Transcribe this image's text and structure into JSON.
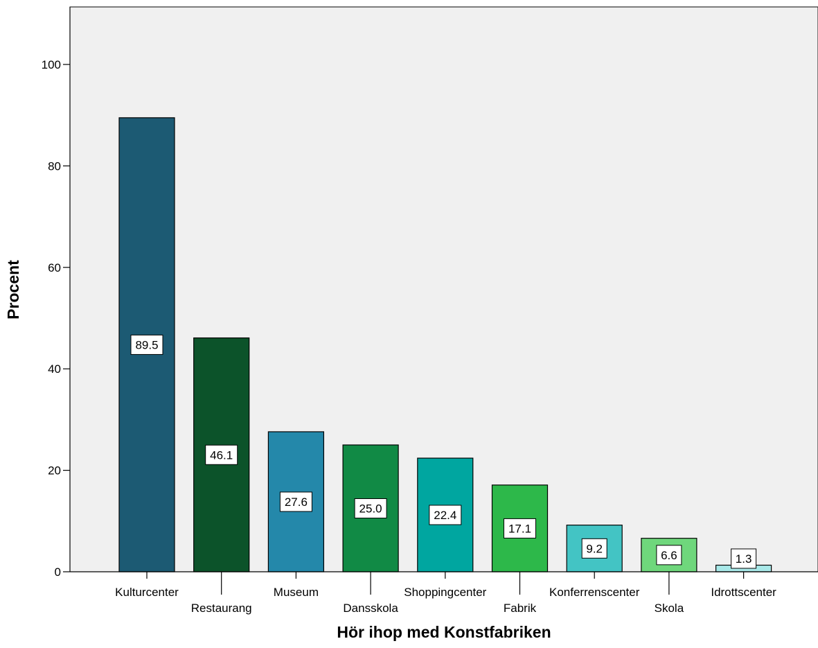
{
  "chart_data": {
    "type": "bar",
    "xlabel": "Hör ihop med Konstfabriken",
    "ylabel": "Procent",
    "ylim": [
      0,
      110
    ],
    "yticks": [
      0,
      20,
      40,
      60,
      80,
      100
    ],
    "grid": false,
    "plot_background": "#F0F0F0",
    "categories": [
      "Kulturcenter",
      "Restaurang",
      "Museum",
      "Dansskola",
      "Shoppingcenter",
      "Fabrik",
      "Konferrenscenter",
      "Skola",
      "Idrottscenter"
    ],
    "values": [
      89.5,
      46.1,
      27.6,
      25.0,
      22.4,
      17.1,
      9.2,
      6.6,
      1.3
    ],
    "data_labels": [
      "89.5",
      "46.1",
      "27.6",
      "25.0",
      "22.4",
      "17.1",
      "9.2",
      "6.6",
      "1.3"
    ],
    "colors": [
      "#1C5A73",
      "#0C532A",
      "#2488AA",
      "#118A45",
      "#00A6A0",
      "#2DB84A",
      "#43C4C4",
      "#6FD77C",
      "#A8E8E8"
    ]
  }
}
